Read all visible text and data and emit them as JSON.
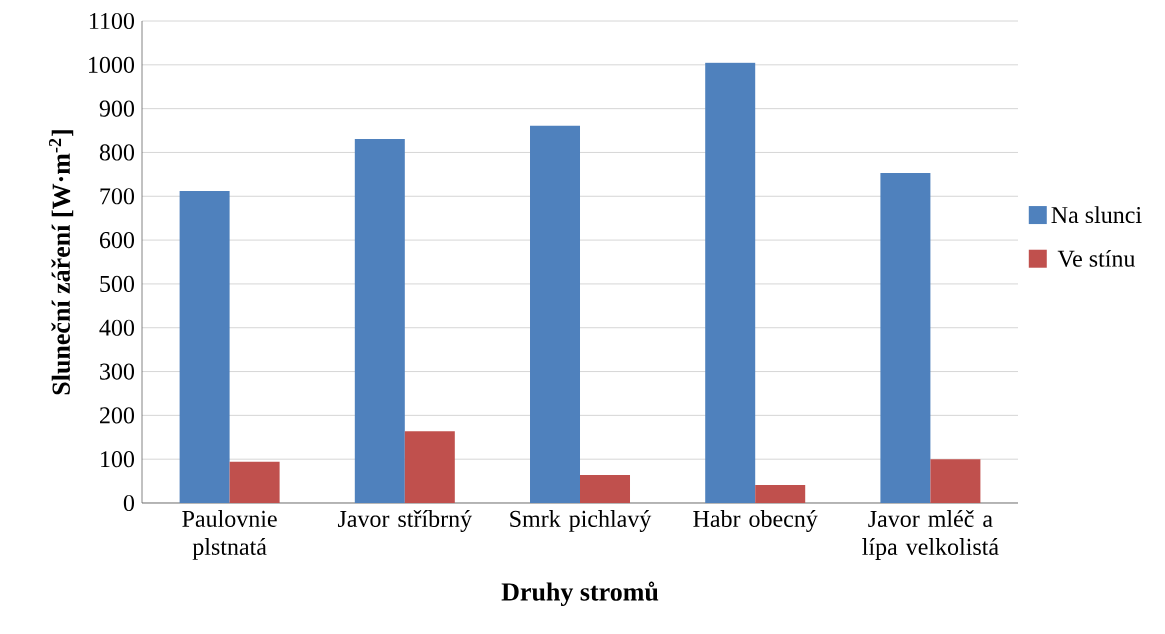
{
  "chart_data": {
    "type": "bar",
    "xlabel": "Druhy stromů",
    "ylabel": "Sluneční záření [W·m$^{-2}$]",
    "categories": [
      "Paulovnie plstnatá",
      "Javor stříbrný",
      "Smrk pichlavý",
      "Habr obecný",
      "Javor mléč a lípa velkolistá"
    ],
    "series": [
      {
        "name": "Na slunci",
        "color": "#4f81bd",
        "values": [
          712,
          831,
          861,
          1005,
          753
        ]
      },
      {
        "name": "Ve stínu",
        "color": "#c0504d",
        "values": [
          94,
          164,
          64,
          41,
          100
        ]
      }
    ],
    "ylim": [
      0,
      1100
    ],
    "yticks": [
      0,
      100,
      200,
      300,
      400,
      500,
      600,
      700,
      800,
      900,
      1000,
      1100
    ],
    "grid": "y",
    "legend": "right"
  }
}
